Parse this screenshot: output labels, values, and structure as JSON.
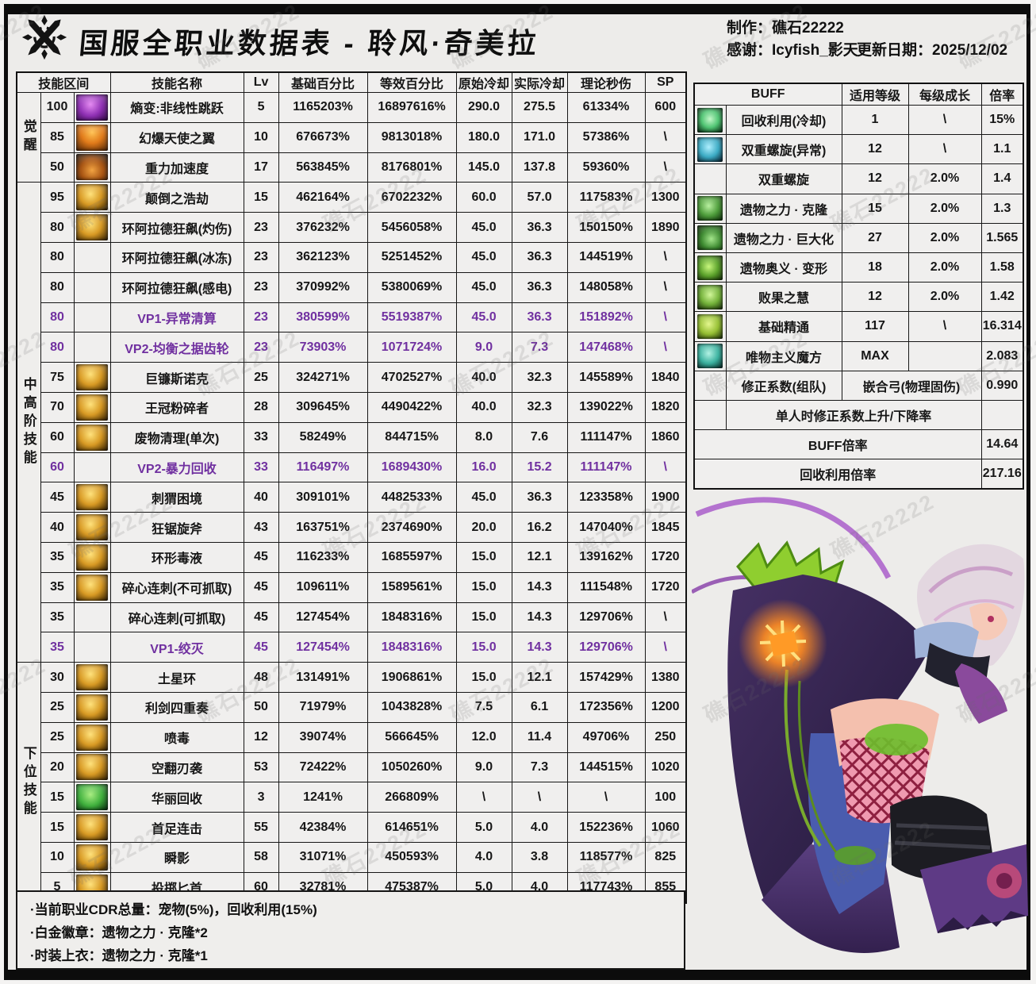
{
  "watermark": "礁石22222",
  "header": {
    "title": "国服全职业数据表 - 聆风·奇美拉",
    "maker": "制作：礁石22222",
    "thanks": "感谢：Icyfish_影天",
    "update": "更新日期：2025/12/02"
  },
  "skill_table": {
    "columns": [
      "技能区间",
      "技能名称",
      "Lv",
      "基础百分比",
      "等效百分比",
      "原始冷却",
      "实际冷却",
      "理论秒伤",
      "SP"
    ],
    "groups": [
      {
        "label": "觉醒",
        "span": 3
      },
      {
        "label": "中高阶技能",
        "span": 16
      },
      {
        "label": "下位技能",
        "span": 8
      }
    ],
    "rows": [
      {
        "range": "100",
        "icon": "purple",
        "name": "熵变:非线性跳跃",
        "lv": "5",
        "base": "1165203%",
        "equiv": "16897616%",
        "cd": "290.0",
        "rcd": "275.5",
        "dps": "61334%",
        "sp": "600",
        "vp": false
      },
      {
        "range": "85",
        "icon": "orange",
        "name": "幻爆天使之翼",
        "lv": "10",
        "base": "676673%",
        "equiv": "9813018%",
        "cd": "180.0",
        "rcd": "171.0",
        "dps": "57386%",
        "sp": "\\",
        "vp": false
      },
      {
        "range": "50",
        "icon": "orange2",
        "name": "重力加速度",
        "lv": "17",
        "base": "563845%",
        "equiv": "8176801%",
        "cd": "145.0",
        "rcd": "137.8",
        "dps": "59360%",
        "sp": "\\",
        "vp": false
      },
      {
        "range": "95",
        "icon": "gold",
        "name": "颠倒之浩劫",
        "lv": "15",
        "base": "462164%",
        "equiv": "6702232%",
        "cd": "60.0",
        "rcd": "57.0",
        "dps": "117583%",
        "sp": "1300",
        "vp": false
      },
      {
        "range": "80",
        "icon": "gold",
        "name": "环阿拉德狂飙(灼伤)",
        "lv": "23",
        "base": "376232%",
        "equiv": "5456058%",
        "cd": "45.0",
        "rcd": "36.3",
        "dps": "150150%",
        "sp": "1890",
        "vp": false
      },
      {
        "range": "80",
        "icon": "",
        "name": "环阿拉德狂飙(冰冻)",
        "lv": "23",
        "base": "362123%",
        "equiv": "5251452%",
        "cd": "45.0",
        "rcd": "36.3",
        "dps": "144519%",
        "sp": "\\",
        "vp": false
      },
      {
        "range": "80",
        "icon": "",
        "name": "环阿拉德狂飙(感电)",
        "lv": "23",
        "base": "370992%",
        "equiv": "5380069%",
        "cd": "45.0",
        "rcd": "36.3",
        "dps": "148058%",
        "sp": "\\",
        "vp": false
      },
      {
        "range": "80",
        "icon": "",
        "name": "VP1-异常清算",
        "lv": "23",
        "base": "380599%",
        "equiv": "5519387%",
        "cd": "45.0",
        "rcd": "36.3",
        "dps": "151892%",
        "sp": "\\",
        "vp": true
      },
      {
        "range": "80",
        "icon": "",
        "name": "VP2-均衡之据齿轮",
        "lv": "23",
        "base": "73903%",
        "equiv": "1071724%",
        "cd": "9.0",
        "rcd": "7.3",
        "dps": "147468%",
        "sp": "\\",
        "vp": true
      },
      {
        "range": "75",
        "icon": "gold",
        "name": "巨镰斯诺克",
        "lv": "25",
        "base": "324271%",
        "equiv": "4702527%",
        "cd": "40.0",
        "rcd": "32.3",
        "dps": "145589%",
        "sp": "1840",
        "vp": false
      },
      {
        "range": "70",
        "icon": "gold",
        "name": "王冠粉碎者",
        "lv": "28",
        "base": "309645%",
        "equiv": "4490422%",
        "cd": "40.0",
        "rcd": "32.3",
        "dps": "139022%",
        "sp": "1820",
        "vp": false
      },
      {
        "range": "60",
        "icon": "gold",
        "name": "废物清理(单次)",
        "lv": "33",
        "base": "58249%",
        "equiv": "844715%",
        "cd": "8.0",
        "rcd": "7.6",
        "dps": "111147%",
        "sp": "1860",
        "vp": false
      },
      {
        "range": "60",
        "icon": "",
        "name": "VP2-暴力回收",
        "lv": "33",
        "base": "116497%",
        "equiv": "1689430%",
        "cd": "16.0",
        "rcd": "15.2",
        "dps": "111147%",
        "sp": "\\",
        "vp": true
      },
      {
        "range": "45",
        "icon": "gold",
        "name": "刺猬困境",
        "lv": "40",
        "base": "309101%",
        "equiv": "4482533%",
        "cd": "45.0",
        "rcd": "36.3",
        "dps": "123358%",
        "sp": "1900",
        "vp": false
      },
      {
        "range": "40",
        "icon": "gold",
        "name": "狂锯旋斧",
        "lv": "43",
        "base": "163751%",
        "equiv": "2374690%",
        "cd": "20.0",
        "rcd": "16.2",
        "dps": "147040%",
        "sp": "1845",
        "vp": false
      },
      {
        "range": "35",
        "icon": "gold",
        "name": "环形毒液",
        "lv": "45",
        "base": "116233%",
        "equiv": "1685597%",
        "cd": "15.0",
        "rcd": "12.1",
        "dps": "139162%",
        "sp": "1720",
        "vp": false
      },
      {
        "range": "35",
        "icon": "gold",
        "name": "碎心连刺(不可抓取)",
        "lv": "45",
        "base": "109611%",
        "equiv": "1589561%",
        "cd": "15.0",
        "rcd": "14.3",
        "dps": "111548%",
        "sp": "1720",
        "vp": false
      },
      {
        "range": "35",
        "icon": "",
        "name": "碎心连刺(可抓取)",
        "lv": "45",
        "base": "127454%",
        "equiv": "1848316%",
        "cd": "15.0",
        "rcd": "14.3",
        "dps": "129706%",
        "sp": "\\",
        "vp": false
      },
      {
        "range": "35",
        "icon": "",
        "name": "VP1-绞灭",
        "lv": "45",
        "base": "127454%",
        "equiv": "1848316%",
        "cd": "15.0",
        "rcd": "14.3",
        "dps": "129706%",
        "sp": "\\",
        "vp": true
      },
      {
        "range": "30",
        "icon": "gold",
        "name": "土星环",
        "lv": "48",
        "base": "131491%",
        "equiv": "1906861%",
        "cd": "15.0",
        "rcd": "12.1",
        "dps": "157429%",
        "sp": "1380",
        "vp": false
      },
      {
        "range": "25",
        "icon": "gold",
        "name": "利剑四重奏",
        "lv": "50",
        "base": "71979%",
        "equiv": "1043828%",
        "cd": "7.5",
        "rcd": "6.1",
        "dps": "172356%",
        "sp": "1200",
        "vp": false
      },
      {
        "range": "25",
        "icon": "gold",
        "name": "喷毒",
        "lv": "12",
        "base": "39074%",
        "equiv": "566645%",
        "cd": "12.0",
        "rcd": "11.4",
        "dps": "49706%",
        "sp": "250",
        "vp": false
      },
      {
        "range": "20",
        "icon": "gold",
        "name": "空翻刃袭",
        "lv": "53",
        "base": "72422%",
        "equiv": "1050260%",
        "cd": "9.0",
        "rcd": "7.3",
        "dps": "144515%",
        "sp": "1020",
        "vp": false
      },
      {
        "range": "15",
        "icon": "green",
        "name": "华丽回收",
        "lv": "3",
        "base": "1241%",
        "equiv": "266809%",
        "cd": "\\",
        "rcd": "\\",
        "dps": "\\",
        "sp": "100",
        "vp": false
      },
      {
        "range": "15",
        "icon": "gold",
        "name": "首足连击",
        "lv": "55",
        "base": "42384%",
        "equiv": "614651%",
        "cd": "5.0",
        "rcd": "4.0",
        "dps": "152236%",
        "sp": "1060",
        "vp": false
      },
      {
        "range": "10",
        "icon": "gold",
        "name": "瞬影",
        "lv": "58",
        "base": "31071%",
        "equiv": "450593%",
        "cd": "4.0",
        "rcd": "3.8",
        "dps": "118577%",
        "sp": "825",
        "vp": false
      },
      {
        "range": "5",
        "icon": "gold",
        "name": "投掷匕首",
        "lv": "60",
        "base": "32781%",
        "equiv": "475387%",
        "cd": "5.0",
        "rcd": "4.0",
        "dps": "117743%",
        "sp": "855",
        "vp": false
      }
    ]
  },
  "buff_table": {
    "columns": [
      "BUFF",
      "适用等级",
      "每级成长",
      "倍率"
    ],
    "rows": [
      {
        "type": "normal",
        "icon": "recycle",
        "name": "回收利用(冷却)",
        "level": "1",
        "growth": "\\",
        "rate": "15%"
      },
      {
        "type": "normal",
        "icon": "dna",
        "name": "双重螺旋(异常)",
        "level": "12",
        "growth": "\\",
        "rate": "1.1"
      },
      {
        "type": "normal",
        "icon": "",
        "name": "双重螺旋",
        "level": "12",
        "growth": "2.0%",
        "rate": "1.4"
      },
      {
        "type": "normal",
        "icon": "relic",
        "name": "遗物之力 · 克隆",
        "level": "15",
        "growth": "2.0%",
        "rate": "1.3"
      },
      {
        "type": "normal",
        "icon": "relic2",
        "name": "遗物之力 · 巨大化",
        "level": "27",
        "growth": "2.0%",
        "rate": "1.565"
      },
      {
        "type": "normal",
        "icon": "morph",
        "name": "遗物奥义 · 变形",
        "level": "18",
        "growth": "2.0%",
        "rate": "1.58"
      },
      {
        "type": "normal",
        "icon": "grin",
        "name": "败果之慧",
        "level": "12",
        "growth": "2.0%",
        "rate": "1.42"
      },
      {
        "type": "normal",
        "icon": "mastery",
        "name": "基础精通",
        "level": "117",
        "growth": "\\",
        "rate": "16.314"
      },
      {
        "type": "normal",
        "icon": "cube",
        "name": "唯物主义魔方",
        "level": "MAX",
        "growth": "",
        "rate": "2.083"
      },
      {
        "type": "merge2",
        "icon": "",
        "name": "修正系数(组队)",
        "merged": "嵌合弓(物理固伤)",
        "rate": "0.990"
      },
      {
        "type": "wide",
        "icon": "",
        "name": "单人时修正系数上升/下降率",
        "rate": ""
      },
      {
        "type": "full",
        "name": "BUFF倍率",
        "rate": "14.64"
      },
      {
        "type": "full",
        "name": "回收利用倍率",
        "rate": "217.16"
      }
    ]
  },
  "notes": [
    "·当前职业CDR总量：宠物(5%)，回收利用(15%)",
    "·白金徽章：遗物之力 · 克隆*2",
    "·时装上衣：遗物之力 · 克隆*1"
  ]
}
